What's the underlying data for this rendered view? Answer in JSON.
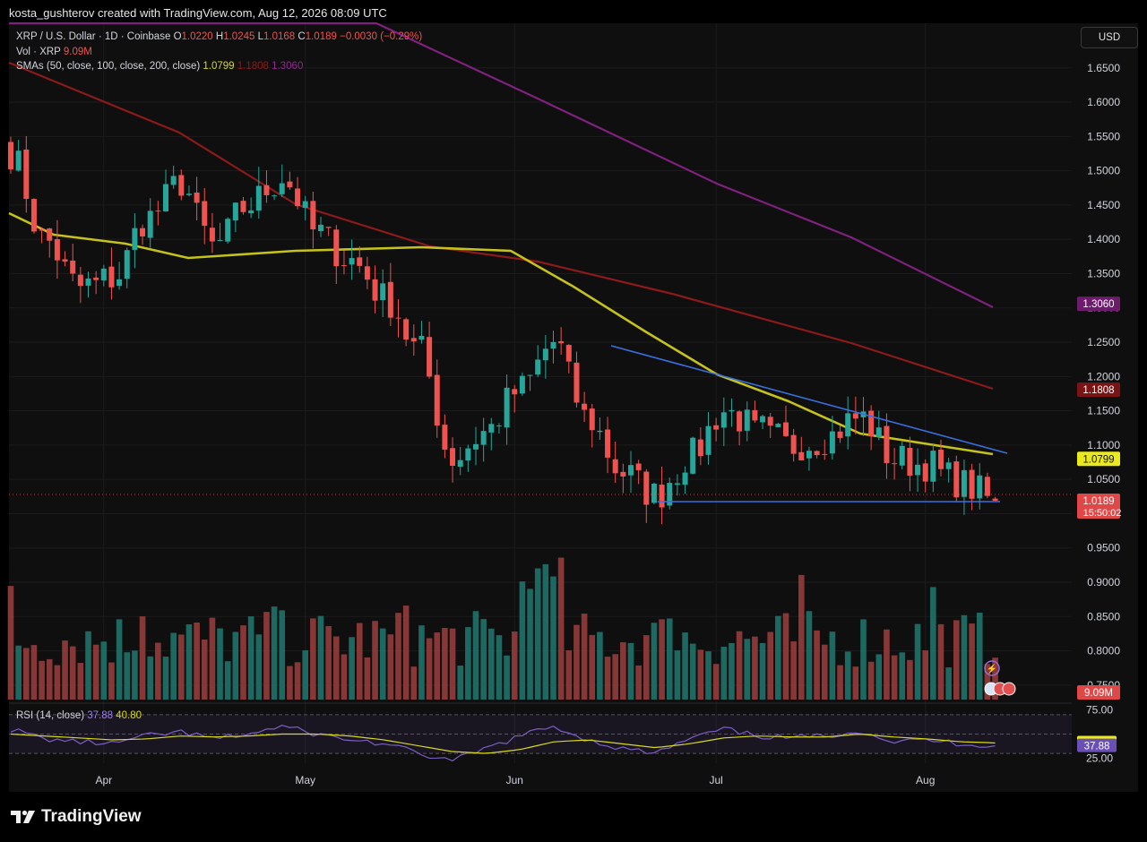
{
  "header": {
    "credit": "kosta_gushterov created with TradingView.com, Aug 12, 2026 08:09 UTC"
  },
  "legend": {
    "symbol": "XRP / U.S. Dollar · 1D · Coinbase",
    "o_label": "O",
    "o_value": "1.0220",
    "h_label": "H",
    "h_value": "1.0245",
    "l_label": "L",
    "l_value": "1.0168",
    "c_label": "C",
    "c_value": "1.0189",
    "change": "−0.0030 (−0.29%)",
    "vol_label": "Vol · XRP",
    "vol_value": "9.09M",
    "sma_label": "SMAs (50, close, 100, close, 200, close)",
    "sma50": "1.0799",
    "sma100": "1.1808",
    "sma200": "1.3060"
  },
  "currency": "USD",
  "rsi_legend": {
    "label": "RSI (14, close)",
    "rsi": "37.88",
    "rsi_ma": "40.80"
  },
  "footer": {
    "logo": "TradingView"
  },
  "colors": {
    "up": "#26a69a",
    "down": "#ef5350",
    "sma50": "#c6c21c",
    "sma100": "#8c1a1a",
    "sma200": "#80207f",
    "trend": "#3b6fe0",
    "rsi": "#7b5ec6",
    "rsi_ma": "#d8d81c"
  },
  "chart_data": [
    {
      "type": "candlestick",
      "title": "XRP / U.S. Dollar · 1D · Coinbase",
      "y_axis": {
        "ticks": [
          "1.6500",
          "1.6000",
          "1.5500",
          "1.5000",
          "1.4500",
          "1.4000",
          "1.3500",
          "1.3000",
          "1.2500",
          "1.2000",
          "1.1500",
          "1.1000",
          "1.0500",
          "1.0000",
          "0.9500",
          "0.9000",
          "0.8500",
          "0.8000",
          "0.7500"
        ],
        "ylim": [
          0.725,
          1.715
        ]
      },
      "x_axis": {
        "labels": [
          "Apr",
          "May",
          "Jun",
          "Jul",
          "Aug"
        ]
      },
      "price_labels": [
        {
          "name": "SMA 200",
          "value": 1.306,
          "text": "1.3060"
        },
        {
          "name": "SMA 100",
          "value": 1.1808,
          "text": "1.1808"
        },
        {
          "name": "SMA 50",
          "value": 1.0799,
          "text": "1.0799"
        },
        {
          "name": "Close",
          "value": 1.0189,
          "text": "1.0189",
          "countdown": "15:50:02"
        }
      ],
      "ohlc_anchors": [
        [
          1.44,
          1.55,
          1.4,
          1.52
        ],
        [
          1.52,
          1.53,
          1.38,
          1.4
        ],
        [
          1.4,
          1.43,
          1.3,
          1.33
        ],
        [
          1.33,
          1.36,
          1.3,
          1.34
        ],
        [
          1.34,
          1.45,
          1.33,
          1.43
        ],
        [
          1.43,
          1.51,
          1.41,
          1.48
        ],
        [
          1.48,
          1.5,
          1.37,
          1.39
        ],
        [
          1.39,
          1.47,
          1.38,
          1.45
        ],
        [
          1.45,
          1.55,
          1.42,
          1.49
        ],
        [
          1.49,
          1.51,
          1.4,
          1.41
        ],
        [
          1.41,
          1.42,
          1.34,
          1.37
        ],
        [
          1.37,
          1.39,
          1.3,
          1.32
        ],
        [
          1.32,
          1.33,
          1.22,
          1.24
        ],
        [
          1.24,
          1.25,
          1.05,
          1.08
        ],
        [
          1.08,
          1.15,
          1.05,
          1.12
        ],
        [
          1.12,
          1.2,
          1.1,
          1.18
        ],
        [
          1.18,
          1.29,
          1.15,
          1.25
        ],
        [
          1.25,
          1.26,
          1.12,
          1.14
        ],
        [
          1.14,
          1.15,
          1.04,
          1.06
        ],
        [
          1.06,
          1.08,
          1.01,
          1.03
        ],
        [
          1.03,
          1.1,
          1.02,
          1.08
        ],
        [
          1.08,
          1.19,
          1.06,
          1.15
        ],
        [
          1.15,
          1.16,
          1.1,
          1.12
        ],
        [
          1.12,
          1.14,
          1.07,
          1.1
        ],
        [
          1.1,
          1.13,
          1.07,
          1.11
        ],
        [
          1.11,
          1.17,
          1.1,
          1.14
        ],
        [
          1.14,
          1.15,
          1.07,
          1.08
        ],
        [
          1.08,
          1.1,
          1.05,
          1.07
        ],
        [
          1.07,
          1.09,
          1.03,
          1.04
        ],
        [
          1.04,
          1.06,
          1.01,
          1.02
        ]
      ],
      "vol_axis_label": "9.09M"
    },
    {
      "type": "line",
      "title": "RSI (14, close)",
      "y_axis": {
        "ticks": [
          "75.00",
          "25.00"
        ],
        "ylim": [
          20,
          80
        ]
      },
      "series": [
        {
          "name": "RSI",
          "value_last": 37.88,
          "anchors": [
            55,
            45,
            42,
            40,
            48,
            52,
            45,
            50,
            58,
            50,
            44,
            40,
            30,
            22,
            35,
            48,
            58,
            44,
            35,
            30,
            45,
            55,
            48,
            46,
            48,
            54,
            42,
            44,
            40,
            38
          ]
        },
        {
          "name": "RSI MA",
          "value_last": 40.8,
          "anchors": [
            50,
            48,
            46,
            44,
            45,
            48,
            47,
            48,
            50,
            50,
            48,
            44,
            38,
            32,
            30,
            34,
            42,
            44,
            40,
            36,
            40,
            46,
            48,
            47,
            47,
            50,
            47,
            45,
            42,
            41
          ]
        }
      ],
      "levels": [
        70,
        50,
        30
      ]
    }
  ]
}
